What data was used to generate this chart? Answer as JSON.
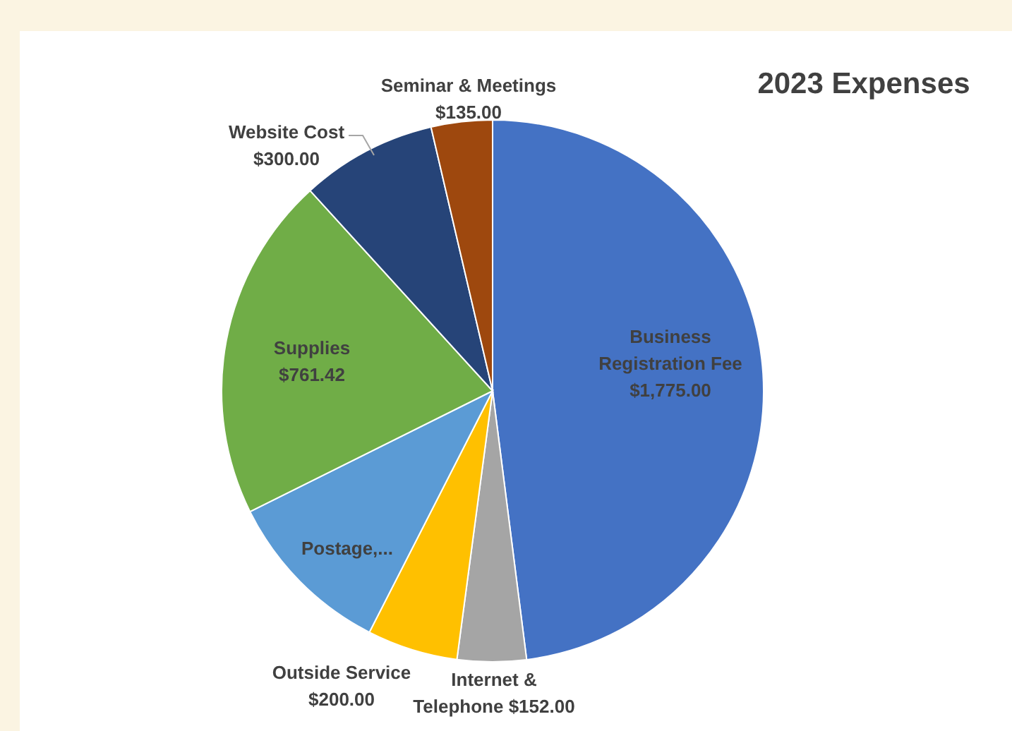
{
  "chart_data": {
    "type": "pie",
    "title": "2023 Expenses",
    "categories": [
      "Business Registration Fee",
      "Internet & Telephone",
      "Outside Service",
      "Postage,...",
      "Supplies",
      "Website Cost",
      "Seminar & Meetings"
    ],
    "values": [
      1775,
      152,
      200,
      375,
      761.42,
      300,
      135
    ],
    "value_labels": [
      "$1,775.00",
      "$152.00",
      "$200.00",
      null,
      "$761.42",
      "$300.00",
      "$135.00"
    ],
    "colors": [
      "#4472c4",
      "#a5a5a5",
      "#ffc000",
      "#5b9bd5",
      "#70ad47",
      "#264478",
      "#9e480e"
    ]
  }
}
